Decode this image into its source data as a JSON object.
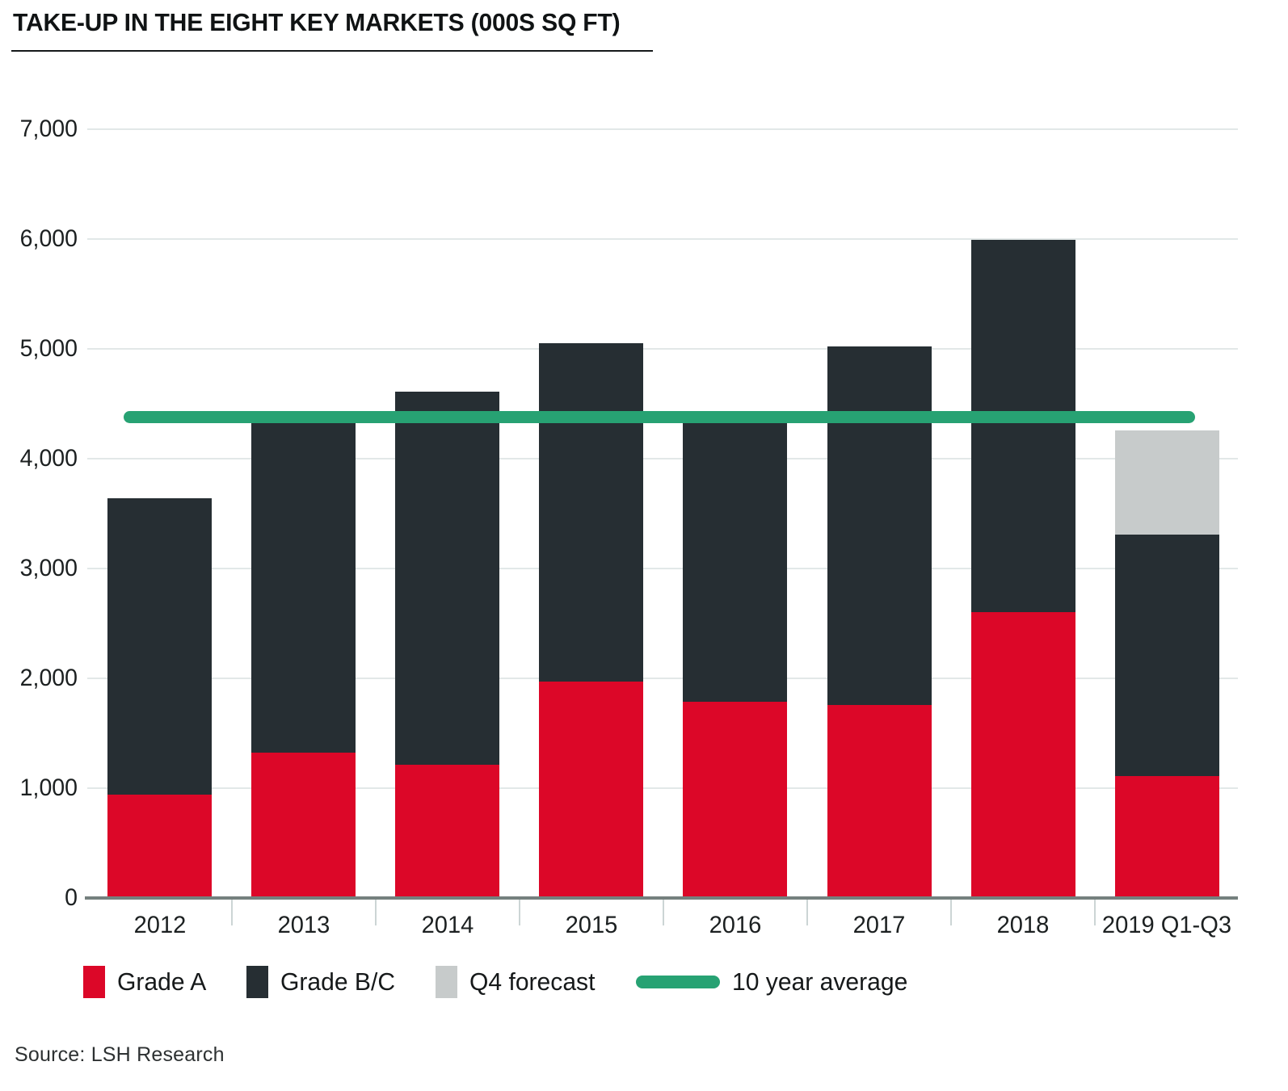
{
  "title": "TAKE-UP IN THE EIGHT KEY MARKETS (000S SQ FT)",
  "source": "Source: LSH Research",
  "chart_data": {
    "type": "bar",
    "stacked": true,
    "title": "TAKE-UP IN THE EIGHT KEY MARKETS (000S SQ FT)",
    "xlabel": "",
    "ylabel": "",
    "categories": [
      "2012",
      "2013",
      "2014",
      "2015",
      "2016",
      "2017",
      "2018",
      "2019 Q1-Q3"
    ],
    "series": [
      {
        "name": "Grade A",
        "values": [
          940,
          1320,
          1210,
          1970,
          1790,
          1760,
          2600,
          1110
        ]
      },
      {
        "name": "Grade B/C",
        "values": [
          2700,
          3010,
          3400,
          3080,
          2540,
          3260,
          3390,
          2200
        ]
      },
      {
        "name": "Q4 forecast",
        "values": [
          0,
          0,
          0,
          0,
          0,
          0,
          0,
          950
        ]
      }
    ],
    "totals": [
      3640,
      4330,
      4610,
      5050,
      4330,
      5020,
      5990,
      4260
    ],
    "reference_line": {
      "name": "10 year average",
      "value": 4380
    },
    "ylim": [
      0,
      7000
    ],
    "y_ticks": [
      0,
      1000,
      2000,
      3000,
      4000,
      5000,
      6000,
      7000
    ],
    "grid": "horizontal",
    "legend_position": "bottom"
  },
  "legend": {
    "items": [
      {
        "label": "Grade A",
        "swatch": "square",
        "color_key": "grade_a"
      },
      {
        "label": "Grade B/C",
        "swatch": "square",
        "color_key": "grade_bc"
      },
      {
        "label": "Q4 forecast",
        "swatch": "square",
        "color_key": "q4_forecast"
      },
      {
        "label": "10 year average",
        "swatch": "line",
        "color_key": "average"
      }
    ]
  },
  "colors": {
    "grade_a": "#dc0728",
    "grade_bc": "#262e33",
    "q4_forecast": "#c7cbcb",
    "average": "#27a273",
    "gridline": "#e2e8e8",
    "axis": "#75807e",
    "text": "#1c2021"
  }
}
